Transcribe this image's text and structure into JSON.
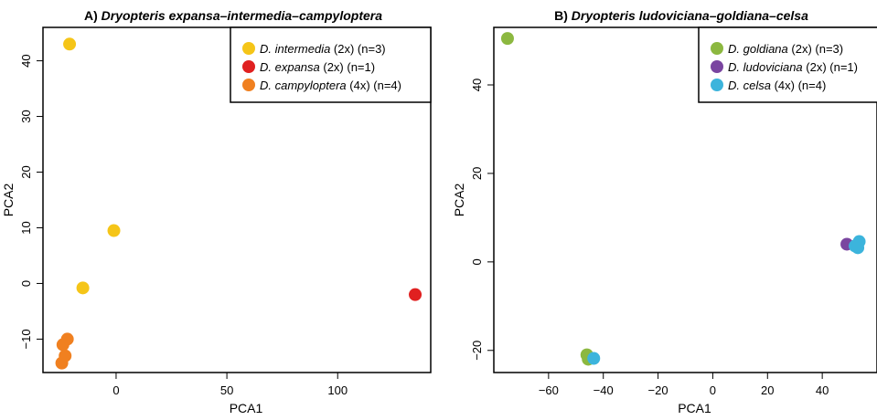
{
  "chart_data": [
    {
      "type": "scatter",
      "title_prefix": "A) ",
      "title_italic": "Dryopteris expansa–intermedia–campyloptera",
      "xlabel": "PCA1",
      "ylabel": "PCA2",
      "xlim": [
        -33,
        142
      ],
      "ylim": [
        -16,
        46
      ],
      "xticks": [
        0,
        50,
        100
      ],
      "yticks": [
        -10,
        0,
        10,
        20,
        30,
        40
      ],
      "xtick_labels": [
        "0",
        "50",
        "100"
      ],
      "ytick_labels": [
        "−10",
        "0",
        "10",
        "20",
        "30",
        "40"
      ],
      "legend_position": "top-right",
      "series": [
        {
          "name_italic": "D. intermedia",
          "name_rest": " (2x) (n=3)",
          "color": "#f5c518",
          "points": [
            [
              -21,
              43
            ],
            [
              -1,
              9.5
            ],
            [
              -15,
              -0.8
            ]
          ]
        },
        {
          "name_italic": "D. expansa",
          "name_rest": " (2x) (n=1)",
          "color": "#e02020",
          "points": [
            [
              135,
              -2
            ]
          ]
        },
        {
          "name_italic": "D. campyloptera",
          "name_rest": " (4x) (n=4)",
          "color": "#f08020",
          "points": [
            [
              -22,
              -10
            ],
            [
              -24,
              -11
            ],
            [
              -23,
              -13
            ],
            [
              -24.5,
              -14.3
            ]
          ]
        }
      ]
    },
    {
      "type": "scatter",
      "title_prefix": "B) ",
      "title_italic": "Dryopteris ludoviciana–goldiana–celsa",
      "xlabel": "PCA1",
      "ylabel": "PCA2",
      "xlim": [
        -80,
        60
      ],
      "ylim": [
        -25,
        53
      ],
      "xticks": [
        -60,
        -40,
        -20,
        0,
        20,
        40
      ],
      "yticks": [
        -20,
        0,
        20,
        40
      ],
      "xtick_labels": [
        "−60",
        "−40",
        "−20",
        "0",
        "20",
        "40"
      ],
      "ytick_labels": [
        "−20",
        "0",
        "20",
        "40"
      ],
      "legend_position": "top-right",
      "series": [
        {
          "name_italic": "D. goldiana",
          "name_rest": " (2x) (n=3)",
          "color": "#8cb840",
          "points": [
            [
              -75,
              50.5
            ],
            [
              -46,
              -21
            ],
            [
              -45.5,
              -22
            ]
          ]
        },
        {
          "name_italic": "D. ludoviciana",
          "name_rest": " (2x) (n=1)",
          "color": "#7a45a0",
          "points": [
            [
              49,
              4
            ]
          ]
        },
        {
          "name_italic": "D. celsa",
          "name_rest": " (4x) (n=4)",
          "color": "#3cb4dc",
          "points": [
            [
              -43.5,
              -21.8
            ],
            [
              52,
              3.6
            ],
            [
              53.5,
              4.6
            ],
            [
              53,
              3.2
            ]
          ]
        }
      ]
    }
  ]
}
